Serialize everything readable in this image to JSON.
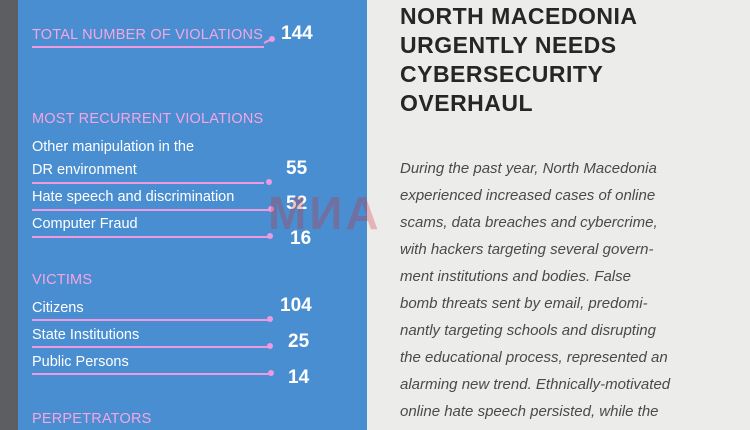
{
  "infographic": {
    "total": {
      "label": "TOTAL NUMBER OF VIOLATIONS",
      "value": "144"
    },
    "recurrent": {
      "heading": "MOST RECURRENT VIOLATIONS",
      "items": [
        {
          "label_line1": "Other manipulation in the",
          "label_line2": "DR environment",
          "value": "55"
        },
        {
          "label": "Hate speech and discrimination",
          "value": "52"
        },
        {
          "label": "Computer Fraud",
          "value": "16"
        }
      ]
    },
    "victims": {
      "heading": "VICTIMS",
      "items": [
        {
          "label": "Citizens",
          "value": "104"
        },
        {
          "label": "State Institutions",
          "value": "25"
        },
        {
          "label": "Public Persons",
          "value": "14"
        }
      ]
    },
    "perpetrators": {
      "heading": "PERPETRATORS"
    }
  },
  "article": {
    "headline_lines": [
      "NORTH MACEDONIA",
      "URGENTLY NEEDS",
      "CYBERSECURITY",
      "OVERHAUL"
    ],
    "body_lines": [
      "During the past year, North Macedonia",
      "experienced increased cases of online",
      "scams, data breaches and cybercrime,",
      "with hackers targeting several govern-",
      "ment institutions and bodies. False",
      "bomb threats sent by email, predomi-",
      "nantly targeting schools and disrupting",
      "the educational process, represented an",
      "alarming new trend. Ethnically-motivated",
      "online hate speech persisted, while the"
    ]
  },
  "watermark": "МИА",
  "colors": {
    "panel": "#4a8ed2",
    "accent_pink": "#ee9ae0",
    "page": "#ececea"
  }
}
